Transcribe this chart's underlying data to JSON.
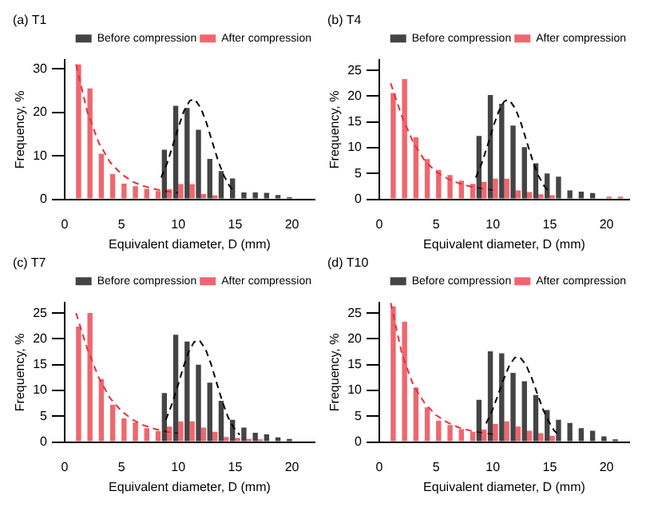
{
  "chart_data": [
    {
      "type": "bar",
      "title": "(a) T1",
      "xlabel": "Equivalent diameter, D (mm)",
      "ylabel": "Frequency, %",
      "xlim": [
        0,
        22
      ],
      "xticks": [
        0,
        5,
        10,
        15,
        20
      ],
      "ylim": [
        0,
        32
      ],
      "yticks": [
        0,
        10,
        20,
        30
      ],
      "legend": "top right",
      "series": [
        {
          "name": "Before compression",
          "color": "#000000",
          "x": [
            9,
            10,
            11,
            12,
            13,
            14,
            15,
            16,
            17,
            18,
            19,
            20
          ],
          "values": [
            11.4,
            21.5,
            21,
            16,
            9.3,
            6.5,
            4.8,
            1.6,
            1.6,
            1.5,
            1,
            0.5
          ]
        },
        {
          "name": "After compression",
          "color": "#e8303a",
          "x": [
            1,
            2,
            3,
            4,
            5,
            6,
            7,
            8,
            9,
            10,
            11,
            12,
            13
          ],
          "values": [
            31,
            25.5,
            10.5,
            5.8,
            3.6,
            3,
            2.4,
            1.9,
            2.3,
            3.5,
            3.5,
            1.2,
            0.9
          ]
        },
        {
          "type": "line",
          "color": "#000000",
          "line_style": "dashed",
          "marker": "none",
          "x": [
            8.5,
            9,
            9.5,
            10,
            10.5,
            11,
            11.3,
            11.5,
            12,
            12.5,
            13,
            13.5,
            14,
            14.5,
            15
          ],
          "values": [
            5,
            8.2,
            12.2,
            16.5,
            20.3,
            22.6,
            23,
            22.8,
            20.9,
            17.4,
            13.1,
            8.9,
            5.5,
            3.1,
            1.6
          ]
        },
        {
          "type": "line",
          "color": "#e8303a",
          "line_style": "dashed",
          "marker": "none",
          "x": [
            1,
            2,
            3,
            4,
            5,
            6,
            7,
            8,
            9,
            10
          ],
          "values": [
            31,
            20,
            13,
            8.5,
            5.8,
            4,
            3,
            2.3,
            1.8,
            1.5
          ]
        }
      ]
    },
    {
      "type": "bar",
      "title": "(b) T4",
      "xlabel": "Equivalent diameter, D (mm)",
      "ylabel": "Frequency, %",
      "xlim": [
        0,
        22
      ],
      "xticks": [
        0,
        5,
        10,
        15,
        20
      ],
      "ylim": [
        0,
        27
      ],
      "yticks": [
        0,
        5,
        10,
        15,
        20,
        25
      ],
      "legend": "top right",
      "series": [
        {
          "name": "Before compression",
          "color": "#000000",
          "x": [
            9,
            10,
            11,
            12,
            13,
            14,
            15,
            16,
            17,
            18,
            19
          ],
          "values": [
            12.3,
            20.2,
            18.5,
            14.3,
            10.1,
            7,
            5,
            4.4,
            1.7,
            1.5,
            1.2
          ]
        },
        {
          "name": "After compression",
          "color": "#e8303a",
          "x": [
            1,
            2,
            3,
            4,
            5,
            6,
            7,
            8,
            9,
            10,
            11,
            12,
            13,
            14,
            15,
            20,
            21
          ],
          "values": [
            20.6,
            23.3,
            12,
            7.8,
            5.7,
            4.7,
            3.6,
            3,
            3.4,
            4,
            4,
            1.7,
            1.4,
            1,
            0.8,
            0.5,
            0.5
          ]
        },
        {
          "type": "line",
          "color": "#000000",
          "line_style": "dashed",
          "marker": "none",
          "x": [
            8.5,
            9,
            9.5,
            10,
            10.5,
            11,
            11.3,
            11.5,
            12,
            12.5,
            13,
            13.5,
            14,
            14.5,
            15
          ],
          "values": [
            4.2,
            6.9,
            10.2,
            13.9,
            17,
            19,
            19.3,
            19.1,
            17.5,
            14.6,
            11,
            7.5,
            4.6,
            2.6,
            1.3
          ]
        },
        {
          "type": "line",
          "color": "#e8303a",
          "line_style": "dashed",
          "marker": "none",
          "x": [
            1,
            2,
            3,
            4,
            5,
            6,
            7,
            8,
            9,
            10
          ],
          "values": [
            22.5,
            16,
            11,
            7.5,
            5.3,
            4,
            3.1,
            2.5,
            2.1,
            1.8
          ]
        }
      ]
    },
    {
      "type": "bar",
      "title": "(c) T7",
      "xlabel": "Equivalent diameter, D (mm)",
      "ylabel": "Frequency, %",
      "xlim": [
        0,
        22
      ],
      "xticks": [
        0,
        5,
        10,
        15,
        20
      ],
      "ylim": [
        0,
        27
      ],
      "yticks": [
        0,
        5,
        10,
        15,
        20,
        25
      ],
      "legend": "top right",
      "series": [
        {
          "name": "Before compression",
          "color": "#000000",
          "x": [
            9,
            10,
            11,
            12,
            13,
            14,
            15,
            16,
            17,
            18,
            19,
            20
          ],
          "values": [
            9.5,
            20.8,
            19.5,
            15,
            11.5,
            8,
            4.3,
            2.8,
            1.8,
            1.5,
            0.9,
            0.6
          ]
        },
        {
          "name": "After compression",
          "color": "#e8303a",
          "x": [
            1,
            2,
            3,
            4,
            5,
            6,
            7,
            8,
            9,
            10,
            11,
            12,
            13,
            14,
            15,
            16,
            17
          ],
          "values": [
            22.4,
            25,
            12.2,
            7.2,
            4.6,
            3.8,
            2.7,
            2.1,
            3,
            4,
            4,
            2.8,
            2,
            1,
            0.8,
            0.6,
            0.5
          ]
        },
        {
          "type": "line",
          "color": "#000000",
          "line_style": "dashed",
          "marker": "none",
          "x": [
            8.9,
            9.4,
            9.9,
            10.4,
            10.9,
            11.4,
            11.7,
            11.9,
            12.4,
            12.9,
            13.4,
            13.9,
            14.4,
            14.9,
            15.4
          ],
          "values": [
            4.3,
            7.1,
            10.5,
            14.2,
            17.5,
            19.4,
            19.8,
            19.6,
            18,
            15,
            11.3,
            7.7,
            4.7,
            2.7,
            1.4
          ]
        },
        {
          "type": "line",
          "color": "#e8303a",
          "line_style": "dashed",
          "marker": "none",
          "x": [
            1,
            2,
            3,
            4,
            5,
            6,
            7,
            8,
            9,
            10
          ],
          "values": [
            25,
            18,
            12.5,
            8.5,
            6,
            4.3,
            3.2,
            2.5,
            2,
            1.7
          ]
        }
      ]
    },
    {
      "type": "bar",
      "title": "(d) T10",
      "xlabel": "Equivalent diameter, D (mm)",
      "ylabel": "Frequency, %",
      "xlim": [
        0,
        22
      ],
      "xticks": [
        0,
        5,
        10,
        15,
        20
      ],
      "ylim": [
        0,
        27
      ],
      "yticks": [
        0,
        5,
        10,
        15,
        20,
        25
      ],
      "legend": "top right",
      "series": [
        {
          "name": "Before compression",
          "color": "#000000",
          "x": [
            9,
            10,
            11,
            12,
            13,
            14,
            15,
            16,
            17,
            18,
            19,
            20,
            21
          ],
          "values": [
            8.2,
            17.6,
            17.2,
            13.4,
            11.8,
            9.1,
            6.2,
            4.3,
            3.7,
            2.7,
            2.2,
            1.1,
            0.5
          ]
        },
        {
          "name": "After compression",
          "color": "#e8303a",
          "x": [
            1,
            2,
            3,
            4,
            5,
            6,
            7,
            8,
            9,
            10,
            11,
            12,
            13,
            14,
            15
          ],
          "values": [
            26.3,
            23.3,
            10.6,
            6.7,
            4.1,
            3.3,
            2.5,
            2,
            2.4,
            3.5,
            4,
            3,
            2.2,
            1.7,
            1.2
          ]
        },
        {
          "type": "line",
          "color": "#000000",
          "line_style": "dashed",
          "marker": "none",
          "x": [
            9.4,
            9.9,
            10.4,
            10.9,
            11.4,
            11.9,
            12.2,
            12.4,
            12.9,
            13.4,
            13.9,
            14.4,
            14.9,
            15.4,
            15.9
          ],
          "values": [
            3.6,
            5.9,
            8.8,
            11.9,
            14.6,
            16.3,
            16.6,
            16.4,
            15,
            12.5,
            9.4,
            6.4,
            4,
            2.2,
            1.2
          ]
        },
        {
          "type": "line",
          "color": "#e8303a",
          "line_style": "dashed",
          "marker": "none",
          "x": [
            1,
            2,
            3,
            4,
            5,
            6,
            7,
            8,
            9,
            10
          ],
          "values": [
            27,
            17,
            11,
            7.5,
            5.2,
            3.8,
            2.8,
            2.2,
            1.8,
            1.5
          ]
        }
      ]
    }
  ]
}
